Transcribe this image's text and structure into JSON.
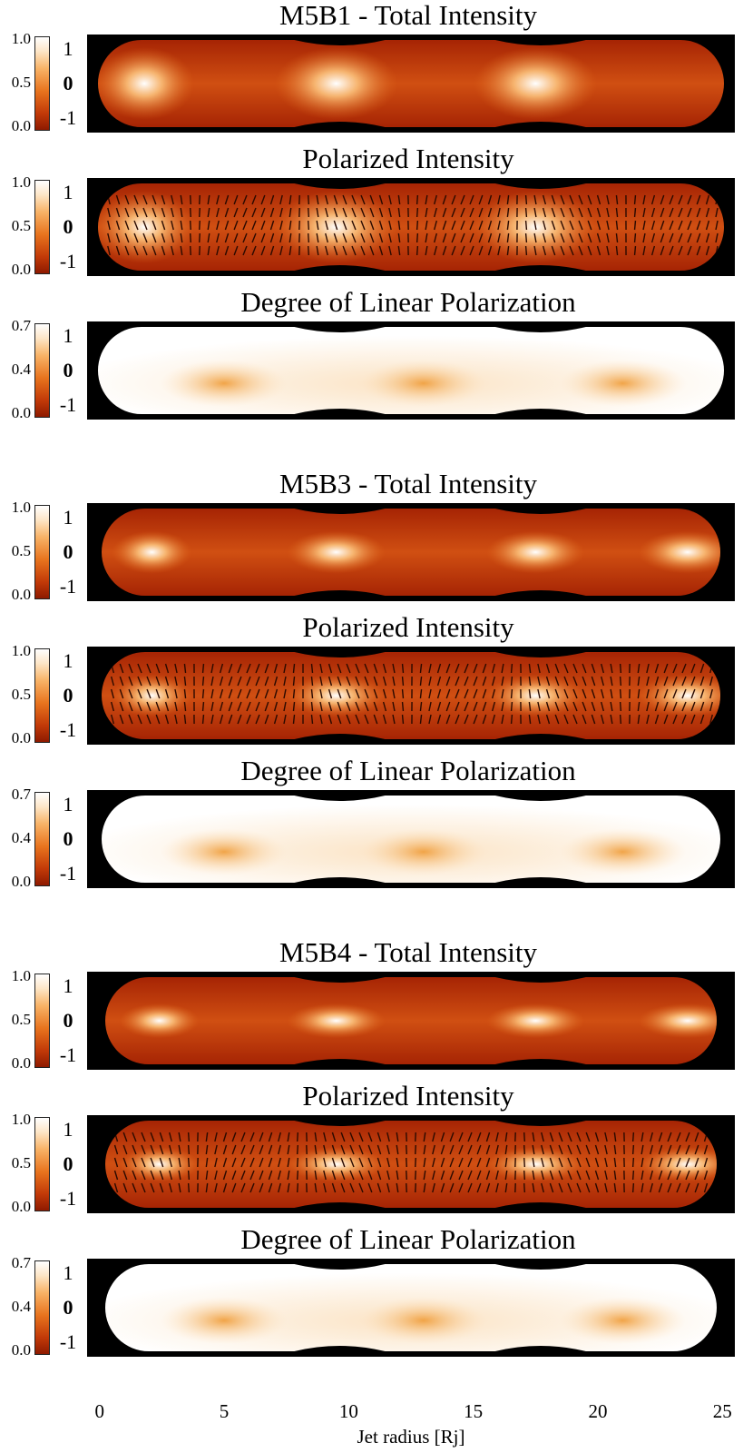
{
  "figure": {
    "colors": {
      "background": "#000000",
      "dark": "#8e1a00",
      "mid": "#d2510f",
      "light": "#f9b062",
      "white": "#ffffff"
    },
    "groups": [
      {
        "id": "M5B1",
        "panels": [
          {
            "kind": "total",
            "title": "M5B1 - Total Intensity",
            "left_ticks": [
              "1.0",
              "0.5",
              "0.0"
            ],
            "color_labels": [
              "1",
              "0",
              "-1"
            ]
          },
          {
            "kind": "polarized",
            "title": "Polarized Intensity",
            "left_ticks": [
              "1.0",
              "0.5",
              "0.0"
            ],
            "color_labels": [
              "1",
              "0",
              "-1"
            ]
          },
          {
            "kind": "degree",
            "title": "Degree of Linear Polarization",
            "left_ticks": [
              "0.7",
              "0.4",
              "0.0"
            ],
            "color_labels": [
              "1",
              "0",
              "-1"
            ]
          }
        ]
      },
      {
        "id": "M5B3",
        "panels": [
          {
            "kind": "total",
            "title": "M5B3 - Total Intensity",
            "left_ticks": [
              "1.0",
              "0.5",
              "0.0"
            ],
            "color_labels": [
              "1",
              "0",
              "-1"
            ]
          },
          {
            "kind": "polarized",
            "title": "Polarized Intensity",
            "left_ticks": [
              "1.0",
              "0.5",
              "0.0"
            ],
            "color_labels": [
              "1",
              "0",
              "-1"
            ]
          },
          {
            "kind": "degree",
            "title": "Degree of Linear Polarization",
            "left_ticks": [
              "0.7",
              "0.4",
              "0.0"
            ],
            "color_labels": [
              "1",
              "0",
              "-1"
            ]
          }
        ]
      },
      {
        "id": "M5B4",
        "panels": [
          {
            "kind": "total",
            "title": "M5B4 - Total Intensity",
            "left_ticks": [
              "1.0",
              "0.5",
              "0.0"
            ],
            "color_labels": [
              "1",
              "0",
              "-1"
            ]
          },
          {
            "kind": "polarized",
            "title": "Polarized Intensity",
            "left_ticks": [
              "1.0",
              "0.5",
              "0.0"
            ],
            "color_labels": [
              "1",
              "0",
              "-1"
            ]
          },
          {
            "kind": "degree",
            "title": "Degree of Linear Polarization",
            "left_ticks": [
              "0.7",
              "0.4",
              "0.0"
            ],
            "color_labels": [
              "1",
              "0",
              "-1"
            ]
          }
        ]
      }
    ],
    "x_axis": {
      "label": "Jet radius [Rj]",
      "range": [
        -0.5,
        25.5
      ],
      "ticks": [
        "0",
        "5",
        "10",
        "15",
        "20",
        "25"
      ],
      "knot_positions": [
        9.5,
        17.5
      ]
    }
  }
}
